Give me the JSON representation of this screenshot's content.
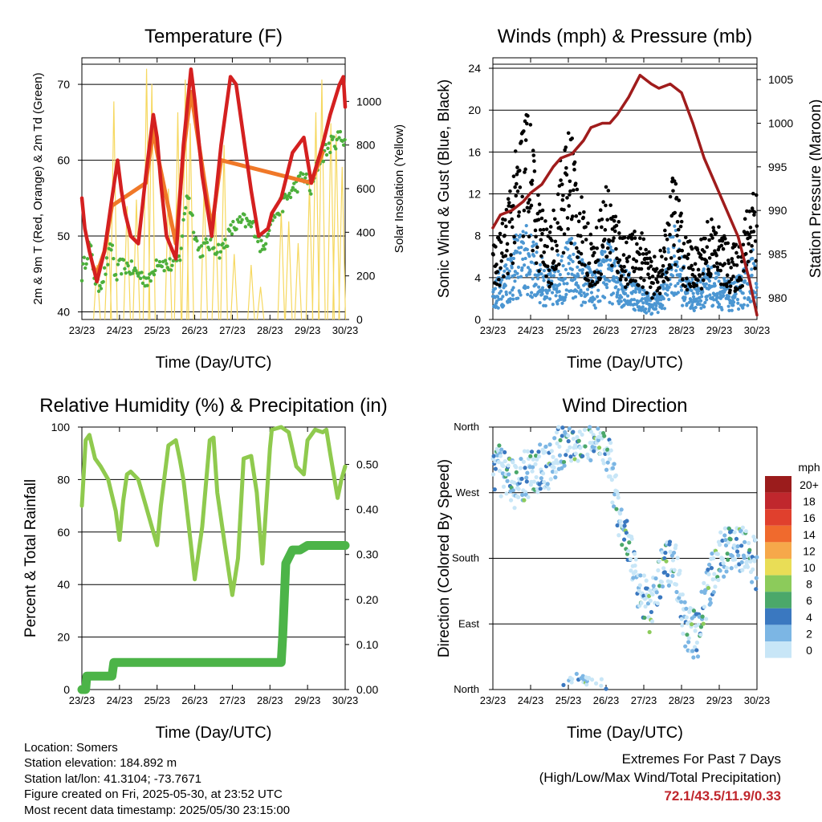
{
  "chart_data": [
    {
      "type": "line",
      "title": "Temperature (F)",
      "xlabel": "Time (Day/UTC)",
      "ylabel": "2m & 9m T (Red, Orange) & 2m Td (Green)",
      "ylabel_right": "Solar Insolation (Yellow)",
      "x_ticks": [
        "23/23",
        "24/23",
        "25/23",
        "26/23",
        "27/23",
        "28/23",
        "29/23",
        "30/23"
      ],
      "ylim": [
        39,
        73.5
      ],
      "yticks": [
        40,
        50,
        60,
        70
      ],
      "ylim_right": [
        0,
        1200
      ],
      "yticks_right": [
        0,
        200,
        400,
        600,
        800,
        1000
      ],
      "grid": true,
      "x_unit": "day_offset",
      "colors": {
        "temp2m": "#d42020",
        "temp9m": "#f07828",
        "dewpoint": "#4caf3c",
        "solar": "#f6d860"
      },
      "series": [
        {
          "key": "temp2m",
          "axis": "left",
          "x": [
            0,
            0.08,
            0.2,
            0.4,
            0.6,
            0.8,
            0.95,
            1.05,
            1.15,
            1.3,
            1.5,
            1.7,
            1.9,
            2.0,
            2.1,
            2.25,
            2.5,
            2.7,
            2.9,
            3.0,
            3.2,
            3.45,
            3.7,
            3.95,
            4.1,
            4.3,
            4.5,
            4.7,
            4.95,
            5.05,
            5.3,
            5.6,
            5.9,
            6.1,
            6.4,
            6.6,
            6.85,
            6.95,
            7.0
          ],
          "y": [
            55,
            51,
            48,
            44,
            48,
            55,
            60,
            56,
            53,
            50,
            49,
            58,
            66,
            63,
            57,
            50,
            47,
            62,
            72,
            68,
            58,
            50,
            62,
            71,
            70,
            63,
            56,
            50,
            51,
            53,
            55,
            61,
            63,
            57,
            62,
            66,
            70,
            71,
            67
          ]
        },
        {
          "key": "temp9m",
          "axis": "left",
          "x": [
            0.3,
            0.4,
            0.6,
            0.8,
            1.7,
            1.9,
            2.0,
            2.5,
            2.7,
            2.9,
            3.45,
            3.7,
            6.1,
            6.4
          ],
          "y": [
            46,
            45,
            48,
            54,
            57,
            64,
            61,
            49,
            61,
            69,
            51,
            60,
            57,
            61
          ]
        },
        {
          "key": "dewpoint",
          "axis": "left",
          "x": [
            0,
            0.2,
            0.4,
            0.6,
            0.8,
            0.9,
            1.0,
            1.2,
            1.5,
            1.8,
            2.0,
            2.3,
            2.6,
            2.8,
            3.1,
            3.4,
            3.7,
            4.0,
            4.3,
            4.6,
            4.8,
            5.0,
            5.3,
            5.6,
            5.9,
            6.1,
            6.3,
            6.6,
            6.85,
            7.0
          ],
          "y": [
            45,
            49,
            43,
            45,
            49,
            44,
            46,
            46,
            45,
            44,
            47,
            46,
            47,
            56,
            48,
            49,
            48,
            51,
            52,
            51,
            48,
            52,
            54,
            56,
            58,
            56,
            60,
            62,
            63,
            63
          ]
        },
        {
          "key": "solar",
          "axis": "right",
          "peaks_x": [
            0.4,
            0.7,
            0.85,
            1.2,
            1.45,
            1.72,
            1.86,
            2.3,
            2.55,
            2.75,
            2.88,
            3.25,
            3.55,
            3.78,
            4.05,
            4.5,
            4.75,
            5.3,
            5.5,
            5.75,
            6.05,
            6.22,
            6.38,
            6.62,
            6.76,
            6.92
          ],
          "peaks_y": [
            250,
            420,
            1000,
            520,
            550,
            1150,
            1080,
            600,
            950,
            1100,
            900,
            620,
            500,
            800,
            300,
            250,
            150,
            500,
            450,
            350,
            620,
            950,
            1100,
            900,
            850,
            700
          ]
        }
      ]
    },
    {
      "type": "scatter",
      "title": "Winds (mph) & Pressure (mb)",
      "xlabel": "Time (Day/UTC)",
      "ylabel": "Sonic Wind & Gust (Blue, Black)",
      "ylabel_right": "Station Pressure (Maroon)",
      "x_ticks": [
        "23/23",
        "24/23",
        "25/23",
        "26/23",
        "27/23",
        "28/23",
        "29/23",
        "30/23"
      ],
      "ylim": [
        0,
        25
      ],
      "yticks": [
        0,
        4,
        8,
        12,
        16,
        20,
        24
      ],
      "ylim_right": [
        977.5,
        1007.5
      ],
      "yticks_right": [
        980,
        985,
        990,
        995,
        1000,
        1005
      ],
      "grid": true,
      "x_unit": "day_offset",
      "colors": {
        "gust": "#000000",
        "wind": "#4b96d2",
        "pressure": "#a01c1c"
      },
      "wind_envelope": {
        "x": [
          0,
          0.3,
          0.6,
          0.9,
          1.2,
          1.5,
          1.8,
          2.1,
          2.4,
          2.7,
          3.0,
          3.3,
          3.6,
          3.9,
          4.2,
          4.5,
          4.8,
          5.1,
          5.4,
          5.7,
          6.0,
          6.3,
          6.6,
          6.9,
          7.0
        ],
        "y": [
          3,
          5,
          7,
          8,
          6,
          4,
          6,
          7,
          5,
          4,
          7,
          5,
          4,
          3,
          2,
          3,
          9,
          4,
          3,
          5,
          4,
          3,
          4,
          6,
          5
        ]
      },
      "gust_envelope": {
        "x": [
          0,
          0.3,
          0.6,
          0.9,
          1.2,
          1.5,
          1.8,
          2.1,
          2.4,
          2.7,
          3.0,
          3.3,
          3.6,
          3.9,
          4.2,
          4.5,
          4.8,
          5.1,
          5.4,
          5.7,
          6.0,
          6.3,
          6.6,
          6.9,
          7.0
        ],
        "y": [
          6,
          9,
          14,
          19,
          11,
          7,
          14,
          17,
          9,
          7,
          12,
          9,
          7,
          8,
          5,
          6,
          13,
          7,
          6,
          9,
          8,
          6,
          7,
          13,
          11
        ]
      },
      "pressure": {
        "x": [
          0,
          0.2,
          0.5,
          0.8,
          1.0,
          1.3,
          1.6,
          1.8,
          2.1,
          2.4,
          2.6,
          2.9,
          3.1,
          3.3,
          3.6,
          3.9,
          4.2,
          4.4,
          4.7,
          5.0,
          5.3,
          5.6,
          5.9,
          6.2,
          6.5,
          6.8,
          7.0
        ],
        "y": [
          988,
          989.5,
          990,
          991,
          992,
          993,
          995,
          996,
          996.5,
          998,
          999.5,
          1000,
          1000,
          1001,
          1003,
          1005.5,
          1004.5,
          1004,
          1004.5,
          1003.5,
          1000,
          996,
          993,
          990,
          987,
          982,
          978
        ]
      }
    },
    {
      "type": "line",
      "title": "Relative Humidity (%) & Precipitation (in)",
      "xlabel": "Time (Day/UTC)",
      "ylabel": "Percent & Total Rainfall",
      "x_ticks": [
        "23/23",
        "24/23",
        "25/23",
        "26/23",
        "27/23",
        "28/23",
        "29/23",
        "30/23"
      ],
      "ylim": [
        0,
        100
      ],
      "yticks": [
        0,
        20,
        40,
        60,
        80,
        100
      ],
      "ylim_right": [
        0,
        0.583
      ],
      "yticks_right": [
        "0.00",
        "0.10",
        "0.20",
        "0.30",
        "0.40",
        "0.50"
      ],
      "grid": true,
      "x_unit": "day_offset",
      "colors": {
        "rh": "#8fca4e",
        "precip": "#4cb448"
      },
      "series": [
        {
          "key": "rh",
          "axis": "left",
          "x": [
            0,
            0.1,
            0.2,
            0.35,
            0.5,
            0.7,
            0.9,
            1.0,
            1.1,
            1.2,
            1.3,
            1.5,
            1.7,
            1.9,
            2.0,
            2.1,
            2.3,
            2.5,
            2.6,
            2.7,
            2.9,
            3.0,
            3.2,
            3.4,
            3.5,
            3.6,
            3.8,
            4.0,
            4.15,
            4.3,
            4.5,
            4.65,
            4.8,
            5.0,
            5.05,
            5.3,
            5.5,
            5.7,
            5.9,
            6.0,
            6.2,
            6.4,
            6.5,
            6.6,
            6.8,
            6.9,
            7.0
          ],
          "y": [
            70,
            95,
            97,
            88,
            85,
            80,
            68,
            57,
            72,
            82,
            83,
            80,
            70,
            60,
            55,
            70,
            93,
            95,
            88,
            80,
            55,
            42,
            62,
            95,
            96,
            75,
            55,
            36,
            50,
            88,
            89,
            75,
            48,
            92,
            99,
            100,
            98,
            85,
            82,
            95,
            99,
            98,
            99,
            90,
            73,
            80,
            85
          ]
        },
        {
          "key": "precip",
          "axis": "right",
          "x": [
            0,
            0.1,
            0.13,
            0.4,
            0.8,
            0.85,
            1.5,
            2.5,
            3.5,
            4.5,
            5.3,
            5.34,
            5.42,
            5.6,
            5.8,
            6.0,
            7.0
          ],
          "y": [
            0,
            0,
            0.03,
            0.03,
            0.03,
            0.06,
            0.06,
            0.06,
            0.06,
            0.06,
            0.06,
            0.12,
            0.28,
            0.31,
            0.31,
            0.32,
            0.32
          ]
        }
      ]
    },
    {
      "type": "scatter",
      "title": "Wind Direction",
      "xlabel": "Time (Day/UTC)",
      "ylabel": "Direction (Colored By Speed)",
      "x_ticks": [
        "23/23",
        "24/23",
        "25/23",
        "26/23",
        "27/23",
        "28/23",
        "29/23",
        "30/23"
      ],
      "y_categories": [
        "North",
        "East",
        "South",
        "West",
        "North"
      ],
      "ylim": [
        0,
        360
      ],
      "grid": true,
      "x_unit": "day_offset",
      "direction_track": {
        "x": [
          0,
          0.5,
          1.0,
          1.5,
          2.0,
          2.5,
          3.0,
          3.3,
          3.6,
          3.9,
          4.2,
          4.5,
          4.8,
          5.1,
          5.4,
          5.7,
          6.0,
          6.3,
          6.6,
          6.9,
          7.0
        ],
        "y": [
          310,
          280,
          300,
          310,
          345,
          350,
          340,
          250,
          200,
          130,
          110,
          170,
          180,
          90,
          70,
          140,
          180,
          200,
          190,
          180,
          170
        ]
      },
      "legend": {
        "title": "mph",
        "labels": [
          "20+",
          "18",
          "16",
          "14",
          "12",
          "10",
          "8",
          "6",
          "4",
          "2",
          "0"
        ],
        "colors": [
          "#9b1c1c",
          "#c0272d",
          "#e0402d",
          "#f06a2d",
          "#f6a84a",
          "#e9dd56",
          "#8ccb5b",
          "#4ba86a",
          "#3a78c0",
          "#7cb6e4",
          "#c8e6f7"
        ]
      }
    }
  ],
  "station_info": {
    "location": "Location: Somers",
    "elevation": "Station elevation: 184.892 m",
    "latlon": "Station lat/lon: 41.3104; -73.7671",
    "created": "Figure created on Fri, 2025-05-30, at 23:52 UTC",
    "recent": "Most recent data timestamp: 2025/05/30 23:15:00"
  },
  "extremes": {
    "heading": "Extremes For Past 7 Days",
    "subheading": "(High/Low/Max Wind/Total Precipitation)",
    "values": "72.1/43.5/11.9/0.33"
  }
}
